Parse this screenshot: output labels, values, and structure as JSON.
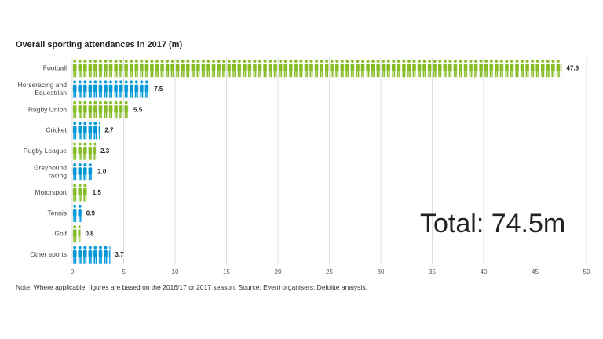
{
  "chart_data": {
    "type": "bar",
    "title": "Overall sporting attendances in 2017 (m)",
    "categories": [
      [
        "Football"
      ],
      [
        "Horseracing and",
        "Equestrian"
      ],
      [
        "Rugby Union"
      ],
      [
        "Cricket"
      ],
      [
        "Rugby League"
      ],
      [
        "Greyhound",
        "racing"
      ],
      [
        "Motorsport"
      ],
      [
        "Tennis"
      ],
      [
        "Golf"
      ],
      [
        "Other sports"
      ]
    ],
    "values": [
      47.6,
      7.5,
      5.5,
      2.7,
      2.3,
      2.0,
      1.5,
      0.9,
      0.8,
      3.7
    ],
    "value_labels": [
      "47.6",
      "7.5",
      "5.5",
      "2.7",
      "2.3",
      "2.0",
      "1.5",
      "0.9",
      "0.8",
      "3.7"
    ],
    "colors": [
      "green",
      "blue",
      "green",
      "blue",
      "green",
      "blue",
      "green",
      "blue",
      "green",
      "blue"
    ],
    "xlim": [
      0,
      50
    ],
    "xticks": [
      0,
      5,
      10,
      15,
      20,
      25,
      30,
      35,
      40,
      45,
      50
    ],
    "grid": true,
    "mark_style": "pictogram (one person icon per million)",
    "total_annotation": "Total: 74.5m"
  },
  "palette": {
    "green": "#86bc25",
    "blue": "#0097d8",
    "grid": "#d6d6d6"
  },
  "footnote": "Note: Where applicable, figures are based on the 2016/17 or 2017 season. Source: Event organisers; Deloitte analysis."
}
